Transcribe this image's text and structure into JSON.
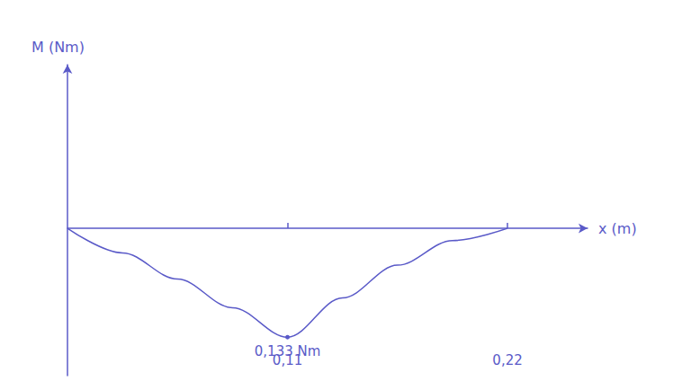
{
  "chart_data": {
    "type": "line",
    "x_label": "x (m)",
    "y_label": "M (Nm)",
    "x": [
      0,
      0.0275,
      0.055,
      0.0825,
      0.11,
      0.1375,
      0.165,
      0.1925,
      0.22
    ],
    "values": [
      0,
      -0.03,
      -0.062,
      -0.097,
      -0.133,
      -0.085,
      -0.045,
      -0.015,
      0
    ],
    "color": "#5a5ac8",
    "xlim": [
      0,
      0.26
    ],
    "xticks": [
      {
        "value": 0.11,
        "label": "0,11"
      },
      {
        "value": 0.22,
        "label": "0,22"
      }
    ],
    "ylim": [
      -0.18,
      0.2
    ],
    "tick_labels": "x",
    "grid": false,
    "annotations": [
      {
        "x": 0.11,
        "y": -0.133,
        "text": "0,133 Nm"
      }
    ]
  }
}
